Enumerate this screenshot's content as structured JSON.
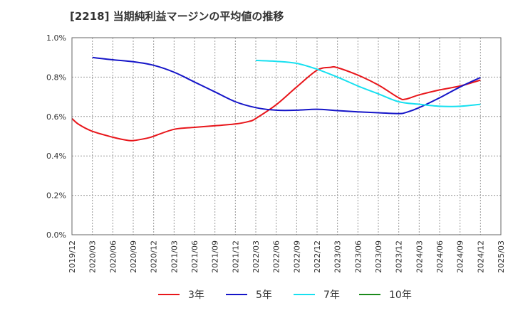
{
  "chart_data": {
    "type": "line",
    "title": "[2218]  当期純利益マージンの平均値の推移",
    "xlabel": "",
    "ylabel": "",
    "x_ticks": [
      "2019/12",
      "2020/03",
      "2020/06",
      "2020/09",
      "2020/12",
      "2021/03",
      "2021/06",
      "2021/09",
      "2021/12",
      "2022/03",
      "2022/06",
      "2022/09",
      "2022/12",
      "2023/03",
      "2023/06",
      "2023/09",
      "2023/12",
      "2024/03",
      "2024/06",
      "2024/09",
      "2024/12",
      "2025/03"
    ],
    "y_ticks": [
      "0.0%",
      "0.2%",
      "0.4%",
      "0.6%",
      "0.8%",
      "1.0%"
    ],
    "ylim": [
      0,
      1.0
    ],
    "grid": true,
    "legend_position": "bottom",
    "series": [
      {
        "name": "3年",
        "color": "#e8161b",
        "points": [
          [
            "2019/12",
            0.59
          ],
          [
            "2020/01",
            0.56
          ],
          [
            "2020/03",
            0.525
          ],
          [
            "2020/06",
            0.495
          ],
          [
            "2020/08",
            0.48
          ],
          [
            "2020/09",
            0.478
          ],
          [
            "2020/11",
            0.49
          ],
          [
            "2020/12",
            0.5
          ],
          [
            "2021/03",
            0.535
          ],
          [
            "2021/06",
            0.545
          ],
          [
            "2021/09",
            0.553
          ],
          [
            "2021/12",
            0.562
          ],
          [
            "2022/02",
            0.575
          ],
          [
            "2022/03",
            0.59
          ],
          [
            "2022/06",
            0.66
          ],
          [
            "2022/09",
            0.75
          ],
          [
            "2022/12",
            0.835
          ],
          [
            "2023/02",
            0.85
          ],
          [
            "2023/03",
            0.848
          ],
          [
            "2023/06",
            0.81
          ],
          [
            "2023/09",
            0.76
          ],
          [
            "2023/12",
            0.695
          ],
          [
            "2024/01",
            0.688
          ],
          [
            "2024/03",
            0.71
          ],
          [
            "2024/06",
            0.735
          ],
          [
            "2024/09",
            0.755
          ],
          [
            "2024/12",
            0.785
          ]
        ]
      },
      {
        "name": "5年",
        "color": "#1515c8",
        "points": [
          [
            "2020/03",
            0.9
          ],
          [
            "2020/06",
            0.888
          ],
          [
            "2020/09",
            0.878
          ],
          [
            "2020/12",
            0.86
          ],
          [
            "2021/03",
            0.825
          ],
          [
            "2021/06",
            0.775
          ],
          [
            "2021/09",
            0.725
          ],
          [
            "2021/12",
            0.675
          ],
          [
            "2022/03",
            0.645
          ],
          [
            "2022/06",
            0.632
          ],
          [
            "2022/09",
            0.632
          ],
          [
            "2022/12",
            0.637
          ],
          [
            "2023/03",
            0.63
          ],
          [
            "2023/06",
            0.624
          ],
          [
            "2023/09",
            0.619
          ],
          [
            "2023/12",
            0.615
          ],
          [
            "2024/01",
            0.62
          ],
          [
            "2024/03",
            0.645
          ],
          [
            "2024/06",
            0.695
          ],
          [
            "2024/09",
            0.75
          ],
          [
            "2024/12",
            0.798
          ]
        ]
      },
      {
        "name": "7年",
        "color": "#17e0f0",
        "points": [
          [
            "2022/03",
            0.885
          ],
          [
            "2022/06",
            0.88
          ],
          [
            "2022/09",
            0.87
          ],
          [
            "2022/12",
            0.84
          ],
          [
            "2023/03",
            0.8
          ],
          [
            "2023/06",
            0.755
          ],
          [
            "2023/09",
            0.715
          ],
          [
            "2023/12",
            0.675
          ],
          [
            "2024/03",
            0.662
          ],
          [
            "2024/06",
            0.652
          ],
          [
            "2024/09",
            0.652
          ],
          [
            "2024/12",
            0.662
          ]
        ]
      },
      {
        "name": "10年",
        "color": "#1b8a1b",
        "points": []
      }
    ]
  }
}
